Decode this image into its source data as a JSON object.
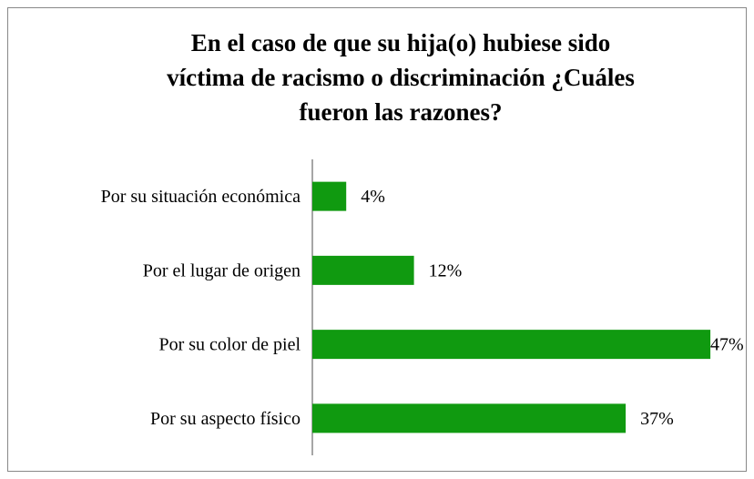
{
  "chart_data": {
    "type": "bar",
    "orientation": "horizontal",
    "title": [
      "En el caso de que su hija(o) hubiese sido",
      "víctima de racismo o discriminación ¿Cuáles",
      "fueron las razones?"
    ],
    "categories": [
      "Por su situación económica",
      "Por el lugar de origen",
      "Por su color de piel",
      "Por su aspecto físico"
    ],
    "values": [
      4,
      12,
      47,
      37
    ],
    "value_labels": [
      "4%",
      "12%",
      "47%",
      "37%"
    ],
    "color": "#109a10",
    "xlim": [
      0,
      50
    ]
  }
}
